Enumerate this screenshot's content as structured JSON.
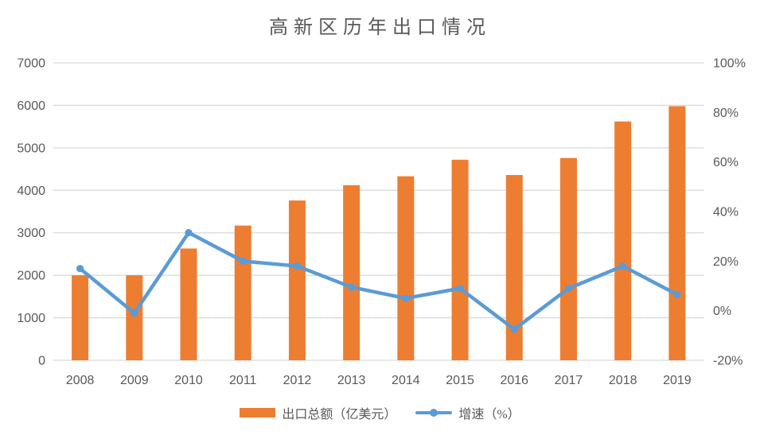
{
  "chart_data": {
    "type": "combo-bar-line",
    "title": "高新区历年出口情况",
    "categories": [
      "2008",
      "2009",
      "2010",
      "2011",
      "2012",
      "2013",
      "2014",
      "2015",
      "2016",
      "2017",
      "2018",
      "2019"
    ],
    "series": [
      {
        "name": "出口总额（亿美元）",
        "type": "bar",
        "axis": "left",
        "color": "#ED7D31",
        "values": [
          2000,
          2000,
          2630,
          3170,
          3760,
          4120,
          4330,
          4720,
          4360,
          4760,
          5620,
          5980
        ]
      },
      {
        "name": "增速（%）",
        "type": "line",
        "axis": "right",
        "color": "#5B9BD5",
        "marker": "circle",
        "values": [
          17,
          -1,
          31.5,
          20,
          18,
          9.5,
          5,
          9,
          -7.5,
          9,
          18,
          6.5
        ]
      }
    ],
    "left_axis": {
      "min": 0,
      "max": 7000,
      "step": 1000,
      "tick_labels": [
        "0",
        "1000",
        "2000",
        "3000",
        "4000",
        "5000",
        "6000",
        "7000"
      ]
    },
    "right_axis": {
      "min": -20,
      "max": 100,
      "step": 20,
      "tick_labels": [
        "-20%",
        "0%",
        "20%",
        "40%",
        "60%",
        "80%",
        "100%"
      ]
    },
    "legend_position": "bottom",
    "grid": true,
    "colors": {
      "gridline": "#D9D9D9",
      "axis_line": "#D9D9D9",
      "text": "#595959",
      "background": "#FFFFFF"
    }
  }
}
